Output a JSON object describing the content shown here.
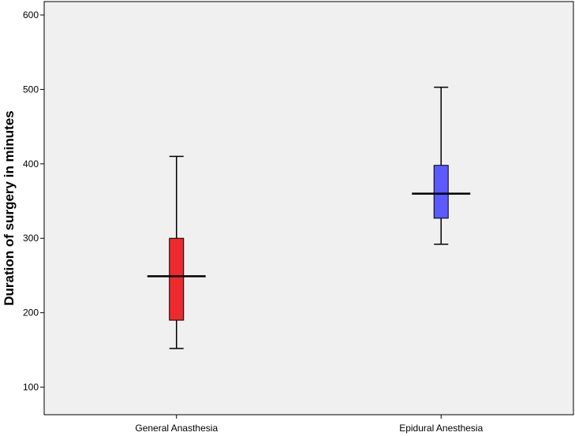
{
  "chart_data": {
    "type": "boxplot",
    "title": "",
    "xlabel": "",
    "ylabel": "Duration of surgery in minutes",
    "ylim": [
      63,
      618
    ],
    "yticks": [
      100,
      200,
      300,
      400,
      500,
      600
    ],
    "categories": [
      "General Anasthesia",
      "Epidural Anesthesia"
    ],
    "boxes": [
      {
        "category": "General Anasthesia",
        "min": 152,
        "q1": 190,
        "median": 249,
        "q3": 300,
        "max": 410,
        "color": "#ee2a2e"
      },
      {
        "category": "Epidural Anesthesia",
        "min": 292,
        "q1": 327,
        "median": 360,
        "q3": 398,
        "max": 503,
        "color": "#5a5aff"
      }
    ],
    "grid": false,
    "background": "#f0f0f0"
  }
}
